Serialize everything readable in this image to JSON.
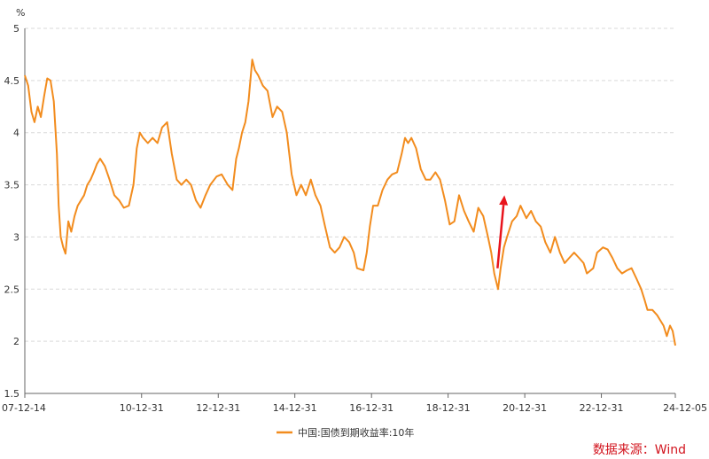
{
  "chart_data": {
    "type": "line",
    "title": "",
    "xlabel": "",
    "ylabel": "%",
    "ylim": [
      1.5,
      5
    ],
    "yticks": [
      "1.5",
      "2",
      "2.5",
      "3",
      "3.5",
      "4",
      "4.5",
      "5"
    ],
    "xlim": [
      "2007-12-14",
      "2024-12-05"
    ],
    "xticks": [
      {
        "date": "2007-12-14",
        "label": "07-12-14"
      },
      {
        "date": "2010-12-31",
        "label": "10-12-31"
      },
      {
        "date": "2012-12-31",
        "label": "12-12-31"
      },
      {
        "date": "2014-12-31",
        "label": "14-12-31"
      },
      {
        "date": "2016-12-31",
        "label": "16-12-31"
      },
      {
        "date": "2018-12-31",
        "label": "18-12-31"
      },
      {
        "date": "2020-12-31",
        "label": "20-12-31"
      },
      {
        "date": "2022-12-31",
        "label": "22-12-31"
      },
      {
        "date": "2024-12-05",
        "label": "24-12-05"
      }
    ],
    "grid": "horizontal-dashed",
    "legend_position": "bottom-left",
    "line_color": "#f28c1e",
    "series": [
      {
        "name": "中国:国债到期收益率:10年",
        "points": [
          [
            "2007-12-14",
            4.55
          ],
          [
            "2008-01-15",
            4.45
          ],
          [
            "2008-02-15",
            4.2
          ],
          [
            "2008-03-15",
            4.1
          ],
          [
            "2008-04-15",
            4.25
          ],
          [
            "2008-05-15",
            4.15
          ],
          [
            "2008-06-15",
            4.35
          ],
          [
            "2008-07-15",
            4.52
          ],
          [
            "2008-08-15",
            4.5
          ],
          [
            "2008-09-15",
            4.3
          ],
          [
            "2008-10-15",
            3.8
          ],
          [
            "2008-11-01",
            3.3
          ],
          [
            "2008-11-20",
            3.0
          ],
          [
            "2008-12-15",
            2.9
          ],
          [
            "2009-01-05",
            2.84
          ],
          [
            "2009-02-01",
            3.15
          ],
          [
            "2009-03-01",
            3.05
          ],
          [
            "2009-04-01",
            3.2
          ],
          [
            "2009-05-01",
            3.3
          ],
          [
            "2009-06-01",
            3.35
          ],
          [
            "2009-07-01",
            3.4
          ],
          [
            "2009-08-01",
            3.5
          ],
          [
            "2009-09-01",
            3.55
          ],
          [
            "2009-10-01",
            3.62
          ],
          [
            "2009-11-01",
            3.7
          ],
          [
            "2009-12-01",
            3.75
          ],
          [
            "2010-01-15",
            3.68
          ],
          [
            "2010-03-01",
            3.55
          ],
          [
            "2010-04-15",
            3.4
          ],
          [
            "2010-06-01",
            3.35
          ],
          [
            "2010-07-15",
            3.28
          ],
          [
            "2010-09-01",
            3.3
          ],
          [
            "2010-10-15",
            3.5
          ],
          [
            "2010-11-15",
            3.85
          ],
          [
            "2010-12-15",
            4.0
          ],
          [
            "2011-01-15",
            3.95
          ],
          [
            "2011-03-01",
            3.9
          ],
          [
            "2011-04-15",
            3.95
          ],
          [
            "2011-06-01",
            3.9
          ],
          [
            "2011-07-15",
            4.05
          ],
          [
            "2011-09-01",
            4.1
          ],
          [
            "2011-10-15",
            3.8
          ],
          [
            "2011-12-01",
            3.55
          ],
          [
            "2012-01-15",
            3.5
          ],
          [
            "2012-03-01",
            3.55
          ],
          [
            "2012-04-15",
            3.5
          ],
          [
            "2012-06-01",
            3.35
          ],
          [
            "2012-07-15",
            3.28
          ],
          [
            "2012-09-01",
            3.4
          ],
          [
            "2012-10-15",
            3.5
          ],
          [
            "2012-12-15",
            3.58
          ],
          [
            "2013-02-01",
            3.6
          ],
          [
            "2013-04-01",
            3.5
          ],
          [
            "2013-05-15",
            3.45
          ],
          [
            "2013-06-20",
            3.75
          ],
          [
            "2013-07-15",
            3.85
          ],
          [
            "2013-08-15",
            4.0
          ],
          [
            "2013-09-15",
            4.1
          ],
          [
            "2013-10-15",
            4.3
          ],
          [
            "2013-11-20",
            4.7
          ],
          [
            "2013-12-15",
            4.6
          ],
          [
            "2014-01-15",
            4.55
          ],
          [
            "2014-03-01",
            4.45
          ],
          [
            "2014-04-15",
            4.4
          ],
          [
            "2014-06-01",
            4.15
          ],
          [
            "2014-07-15",
            4.25
          ],
          [
            "2014-09-01",
            4.2
          ],
          [
            "2014-10-15",
            4.0
          ],
          [
            "2014-12-01",
            3.6
          ],
          [
            "2015-01-15",
            3.4
          ],
          [
            "2015-03-01",
            3.5
          ],
          [
            "2015-04-15",
            3.4
          ],
          [
            "2015-06-01",
            3.55
          ],
          [
            "2015-07-15",
            3.4
          ],
          [
            "2015-09-01",
            3.3
          ],
          [
            "2015-10-15",
            3.1
          ],
          [
            "2015-12-01",
            2.9
          ],
          [
            "2016-01-15",
            2.85
          ],
          [
            "2016-03-01",
            2.9
          ],
          [
            "2016-04-15",
            3.0
          ],
          [
            "2016-06-01",
            2.95
          ],
          [
            "2016-07-15",
            2.85
          ],
          [
            "2016-08-15",
            2.7
          ],
          [
            "2016-10-15",
            2.68
          ],
          [
            "2016-11-15",
            2.85
          ],
          [
            "2016-12-15",
            3.1
          ],
          [
            "2017-01-15",
            3.3
          ],
          [
            "2017-03-01",
            3.3
          ],
          [
            "2017-04-15",
            3.45
          ],
          [
            "2017-06-01",
            3.55
          ],
          [
            "2017-07-15",
            3.6
          ],
          [
            "2017-09-01",
            3.62
          ],
          [
            "2017-10-15",
            3.8
          ],
          [
            "2017-11-15",
            3.95
          ],
          [
            "2017-12-15",
            3.9
          ],
          [
            "2018-01-15",
            3.95
          ],
          [
            "2018-03-01",
            3.85
          ],
          [
            "2018-04-15",
            3.65
          ],
          [
            "2018-06-01",
            3.55
          ],
          [
            "2018-07-15",
            3.55
          ],
          [
            "2018-09-01",
            3.62
          ],
          [
            "2018-10-15",
            3.55
          ],
          [
            "2018-12-01",
            3.35
          ],
          [
            "2019-01-15",
            3.12
          ],
          [
            "2019-03-01",
            3.15
          ],
          [
            "2019-04-15",
            3.4
          ],
          [
            "2019-06-01",
            3.25
          ],
          [
            "2019-07-15",
            3.15
          ],
          [
            "2019-09-01",
            3.05
          ],
          [
            "2019-10-15",
            3.28
          ],
          [
            "2019-12-01",
            3.2
          ],
          [
            "2020-01-15",
            3.0
          ],
          [
            "2020-02-15",
            2.85
          ],
          [
            "2020-03-15",
            2.65
          ],
          [
            "2020-04-20",
            2.5
          ],
          [
            "2020-05-15",
            2.7
          ],
          [
            "2020-06-15",
            2.9
          ],
          [
            "2020-07-15",
            3.0
          ],
          [
            "2020-09-01",
            3.15
          ],
          [
            "2020-10-15",
            3.2
          ],
          [
            "2020-11-20",
            3.3
          ],
          [
            "2021-01-15",
            3.18
          ],
          [
            "2021-03-01",
            3.25
          ],
          [
            "2021-04-15",
            3.15
          ],
          [
            "2021-06-01",
            3.1
          ],
          [
            "2021-07-15",
            2.95
          ],
          [
            "2021-09-01",
            2.85
          ],
          [
            "2021-10-15",
            3.0
          ],
          [
            "2021-12-01",
            2.85
          ],
          [
            "2022-01-15",
            2.75
          ],
          [
            "2022-03-01",
            2.8
          ],
          [
            "2022-04-15",
            2.85
          ],
          [
            "2022-06-01",
            2.8
          ],
          [
            "2022-07-15",
            2.75
          ],
          [
            "2022-08-15",
            2.65
          ],
          [
            "2022-10-15",
            2.7
          ],
          [
            "2022-11-20",
            2.85
          ],
          [
            "2023-01-15",
            2.9
          ],
          [
            "2023-03-01",
            2.88
          ],
          [
            "2023-04-15",
            2.8
          ],
          [
            "2023-06-01",
            2.7
          ],
          [
            "2023-07-15",
            2.65
          ],
          [
            "2023-09-01",
            2.68
          ],
          [
            "2023-10-15",
            2.7
          ],
          [
            "2023-12-01",
            2.6
          ],
          [
            "2024-01-15",
            2.5
          ],
          [
            "2024-02-15",
            2.4
          ],
          [
            "2024-03-15",
            2.3
          ],
          [
            "2024-05-01",
            2.3
          ],
          [
            "2024-06-15",
            2.25
          ],
          [
            "2024-07-15",
            2.2
          ],
          [
            "2024-08-15",
            2.15
          ],
          [
            "2024-09-15",
            2.05
          ],
          [
            "2024-10-15",
            2.15
          ],
          [
            "2024-11-10",
            2.1
          ],
          [
            "2024-12-05",
            1.96
          ]
        ]
      }
    ],
    "annotations": [
      {
        "type": "arrow",
        "color": "#e8141c",
        "from": [
          "2020-04-15",
          2.7
        ],
        "to": [
          "2020-06-20",
          3.4
        ]
      }
    ],
    "source_text": "数据来源：Wind"
  }
}
